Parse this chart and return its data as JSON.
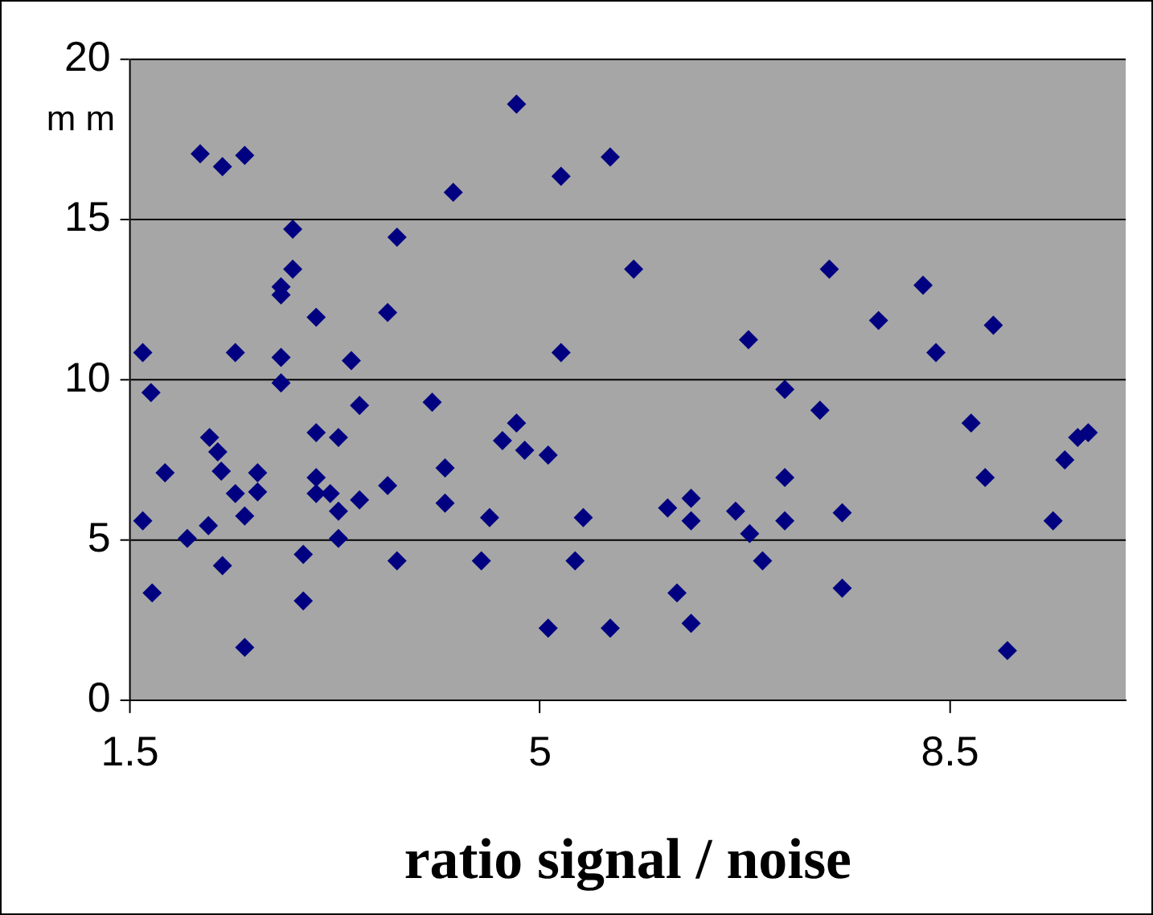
{
  "chart_data": {
    "type": "scatter",
    "ylabel": "m m",
    "xlabel": "ratio signal / noise",
    "xlim": [
      1.5,
      10
    ],
    "xticks": [
      1.5,
      5,
      8.5
    ],
    "ylim": [
      0,
      20
    ],
    "yticks": [
      0,
      5,
      10,
      15,
      20
    ],
    "grid": "y",
    "marker": "diamond",
    "legend": false,
    "series": [
      {
        "color": "#000080",
        "x": [
          1.61,
          1.68,
          1.61,
          1.69,
          1.8,
          1.99,
          2.1,
          2.18,
          2.17,
          2.25,
          2.29,
          2.28,
          2.29,
          2.4,
          2.4,
          2.48,
          2.48,
          2.48,
          2.59,
          2.59,
          2.79,
          2.79,
          2.79,
          2.79,
          2.89,
          2.89,
          2.98,
          2.98,
          3.09,
          3.09,
          3.09,
          3.09,
          3.28,
          3.21,
          3.28,
          3.28,
          3.39,
          3.46,
          3.46,
          3.7,
          3.7,
          3.78,
          3.78,
          4.08,
          4.19,
          4.19,
          4.26,
          4.8,
          5.18,
          5.6,
          5.8,
          5.18,
          6.78,
          7.09,
          4.8,
          4.68,
          4.87,
          5.07,
          4.57,
          5.37,
          4.5,
          5.3,
          5.07,
          5.6,
          6.09,
          6.29,
          6.29,
          6.17,
          6.29,
          6.67,
          6.79,
          6.9,
          7.09,
          7.09,
          7.47,
          8.27,
          7.89,
          8.87,
          8.38,
          7.39,
          8.68,
          9.68,
          9.59,
          9.48,
          8.8,
          7.58,
          9.38,
          7.58,
          8.99
        ],
        "values": [
          10.85,
          9.6,
          5.6,
          3.35,
          7.1,
          5.05,
          17.05,
          8.2,
          5.45,
          7.75,
          16.65,
          7.15,
          4.2,
          10.85,
          6.45,
          17.0,
          5.75,
          1.65,
          7.1,
          6.5,
          12.65,
          12.9,
          9.9,
          10.7,
          13.45,
          14.7,
          4.55,
          3.1,
          11.95,
          8.35,
          6.95,
          6.45,
          8.2,
          6.45,
          5.9,
          5.05,
          10.6,
          9.2,
          6.25,
          12.1,
          6.7,
          14.45,
          4.35,
          9.3,
          7.25,
          6.15,
          15.85,
          18.6,
          16.35,
          16.95,
          13.45,
          10.85,
          11.25,
          9.7,
          8.65,
          8.1,
          7.8,
          7.65,
          5.7,
          5.7,
          4.35,
          4.35,
          2.25,
          2.25,
          6.0,
          6.3,
          5.6,
          3.35,
          2.4,
          5.9,
          5.2,
          4.35,
          6.95,
          5.6,
          13.45,
          12.95,
          11.85,
          11.7,
          10.85,
          9.05,
          8.65,
          8.35,
          8.2,
          7.5,
          6.95,
          5.85,
          5.6,
          3.5,
          1.55
        ]
      }
    ]
  }
}
